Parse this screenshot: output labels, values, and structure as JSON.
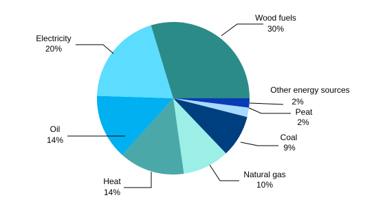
{
  "chart_data": {
    "type": "pie",
    "categories": [
      "Other energy sources",
      "Peat",
      "Coal",
      "Natural gas",
      "Heat",
      "Oil",
      "Electricity",
      "Wood fuels"
    ],
    "values": [
      2,
      2,
      9,
      10,
      14,
      14,
      20,
      30
    ],
    "value_labels": [
      "2%",
      "2%",
      "9%",
      "10%",
      "14%",
      "14%",
      "20%",
      "30%"
    ],
    "colors": [
      "#0a3bb5",
      "#a8d9ff",
      "#003f7f",
      "#9befe6",
      "#4aa8a8",
      "#00b0f0",
      "#5cdcff",
      "#2a8b88"
    ]
  }
}
